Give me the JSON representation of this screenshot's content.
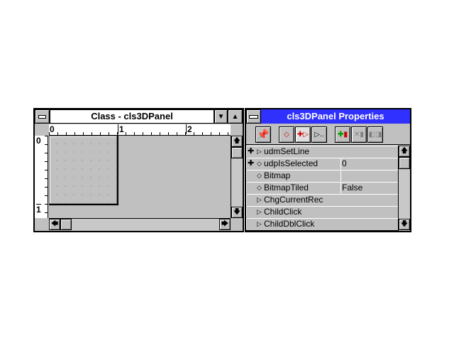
{
  "class_window": {
    "title": "Class - cls3DPanel",
    "ruler_h": [
      "0",
      "1",
      "2"
    ],
    "ruler_v": [
      "0",
      "1"
    ]
  },
  "properties_window": {
    "title": "cls3DPanel Properties",
    "title_color": "#3030ff",
    "toolbar": [
      "pin-icon",
      "insert-property-icon",
      "insert-method-icon",
      "more-icon",
      "add-icon",
      "delete-icon",
      "rename-icon"
    ],
    "more_label": "▷..",
    "rows": [
      {
        "expand": "✚",
        "marker": "▷",
        "name": "udmSetLine",
        "value": null
      },
      {
        "expand": "✚",
        "marker": "◇",
        "name": "udpIsSelected",
        "value": "0"
      },
      {
        "expand": "",
        "marker": "◇",
        "name": "Bitmap",
        "value": ""
      },
      {
        "expand": "",
        "marker": "◇",
        "name": "BitmapTiled",
        "value": "False"
      },
      {
        "expand": "",
        "marker": "▷",
        "name": "ChgCurrentRec",
        "value": null
      },
      {
        "expand": "",
        "marker": "▷",
        "name": "ChildClick",
        "value": null
      },
      {
        "expand": "",
        "marker": "▷",
        "name": "ChildDblClick",
        "value": null
      }
    ]
  }
}
